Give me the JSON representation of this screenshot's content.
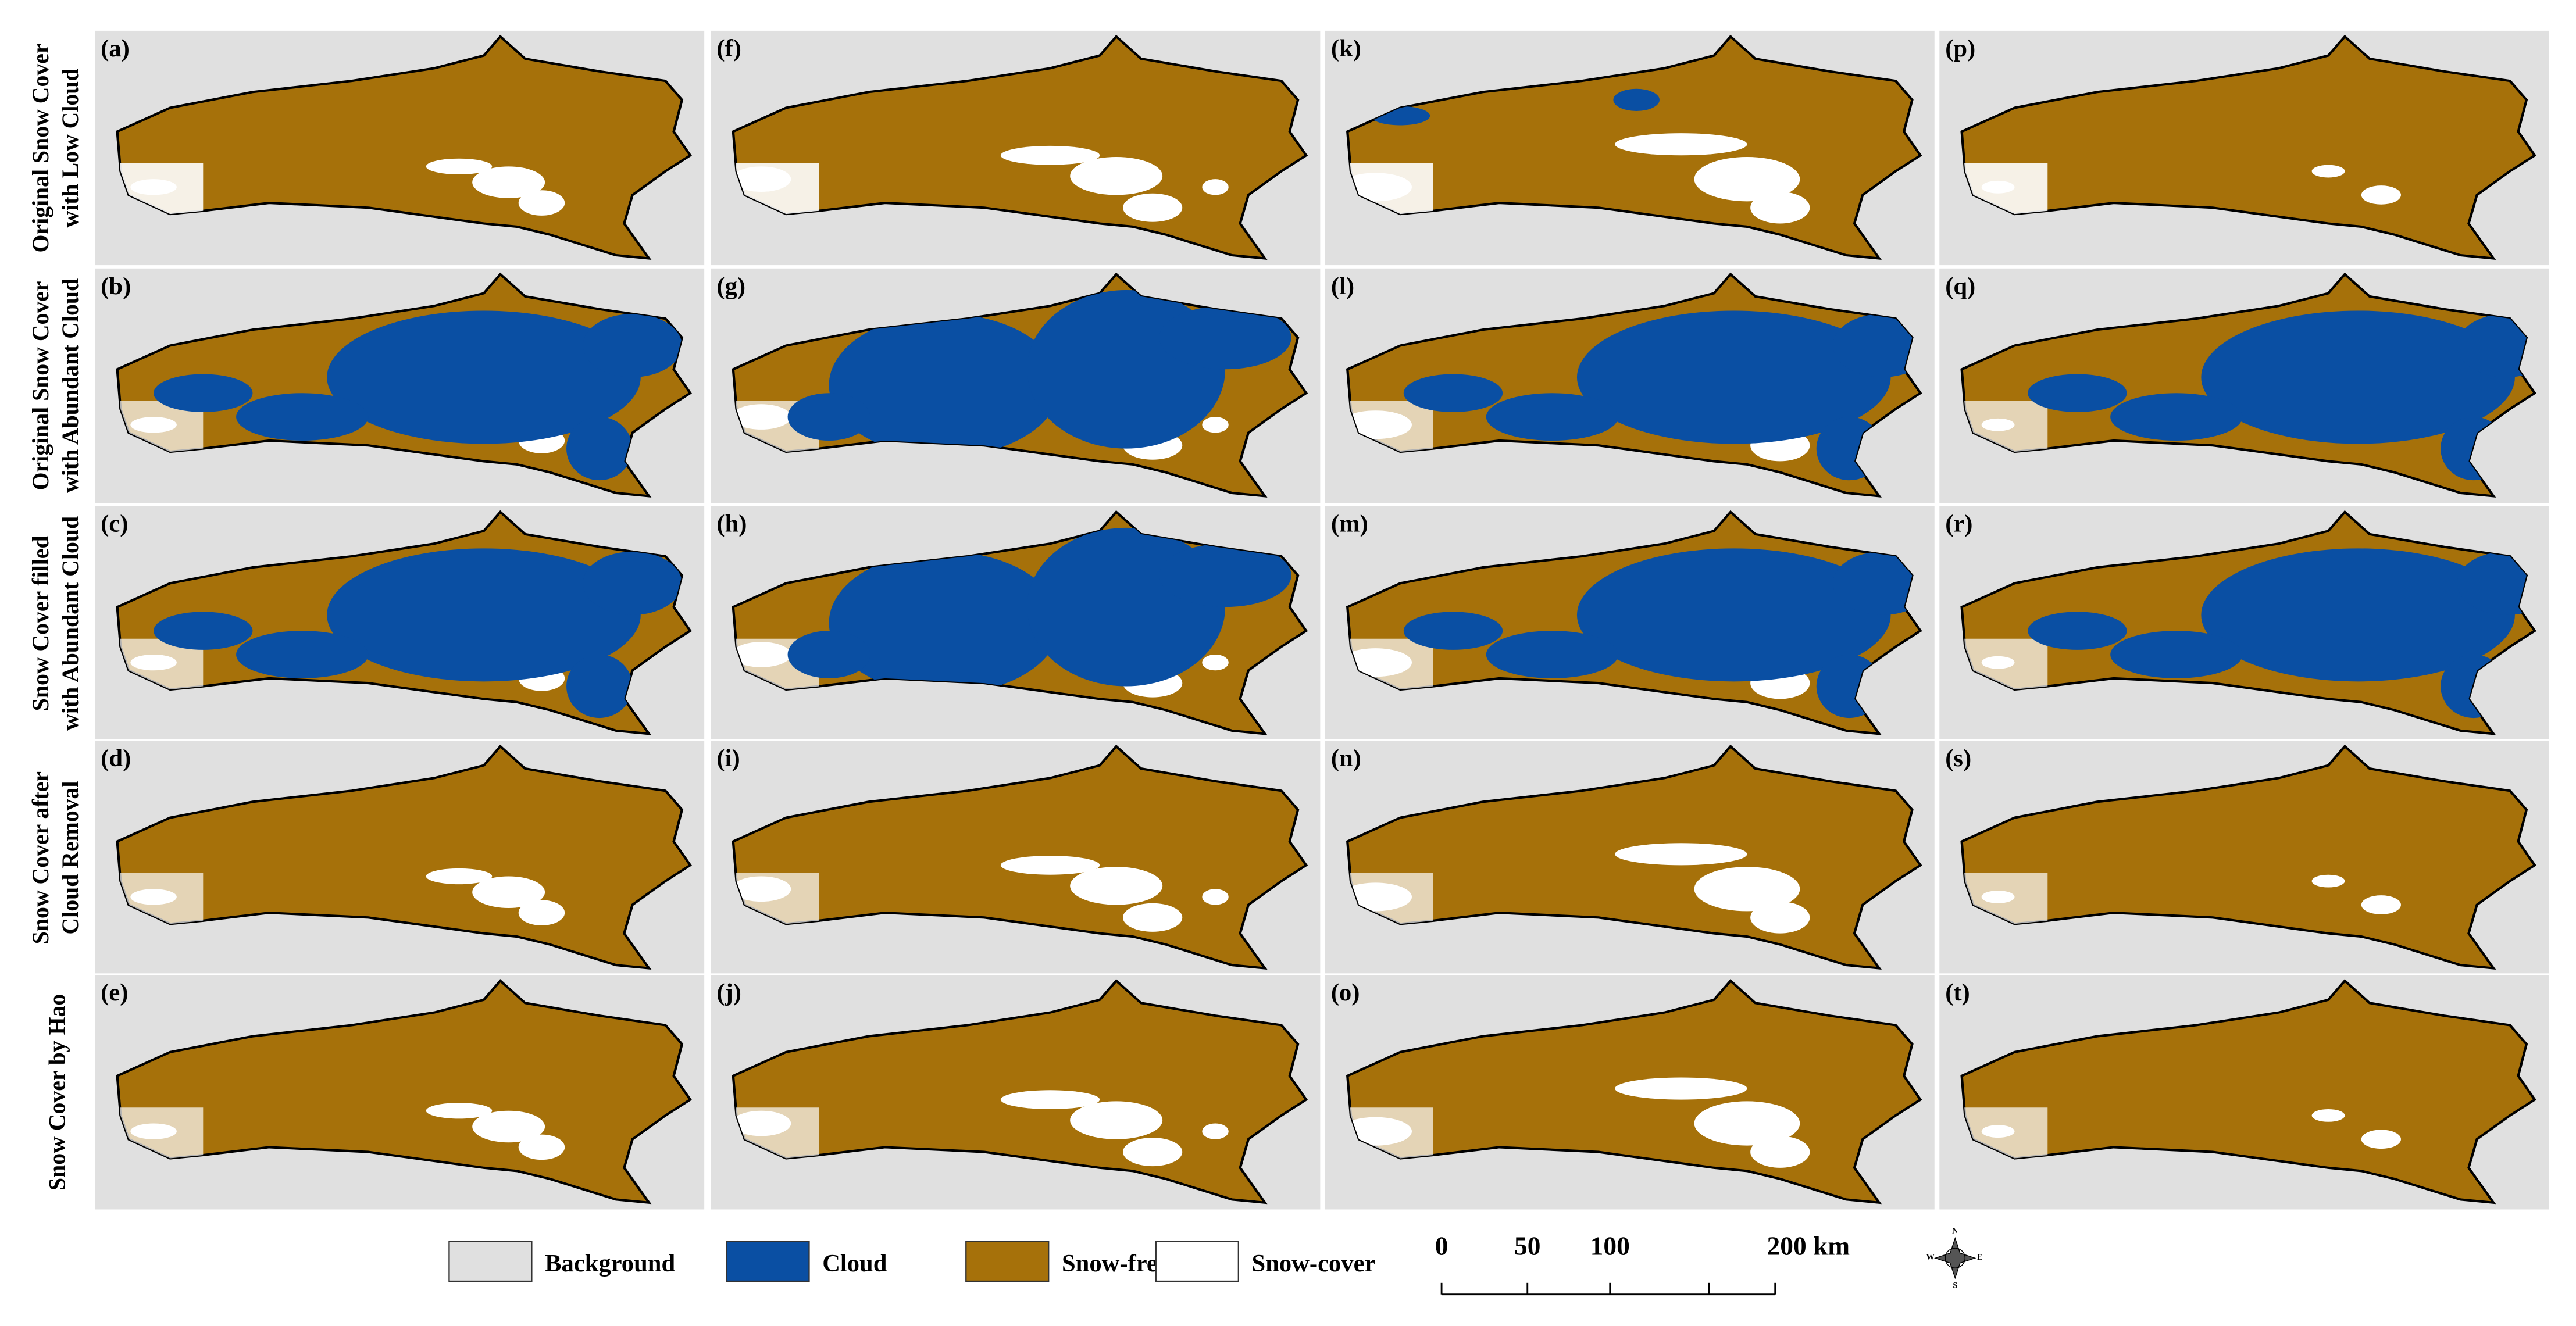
{
  "rows": [
    {
      "label": [
        "Original Snow Cover",
        "with Low Cloud"
      ],
      "panels": [
        "(a)",
        "(f)",
        "(k)",
        "(p)"
      ]
    },
    {
      "label": [
        "Original Snow Cover",
        "with Abundant Cloud"
      ],
      "panels": [
        "(b)",
        "(g)",
        "(l)",
        "(q)"
      ]
    },
    {
      "label": [
        "Snow Cover filled",
        "with Abundant Cloud"
      ],
      "panels": [
        "(c)",
        "(h)",
        "(m)",
        "(r)"
      ]
    },
    {
      "label": [
        "Snow Cover after",
        "Cloud Removal"
      ],
      "panels": [
        "(d)",
        "(i)",
        "(n)",
        "(s)"
      ]
    },
    {
      "label": [
        "Snow Cover by Hao"
      ],
      "panels": [
        "(e)",
        "(j)",
        "(o)",
        "(t)"
      ]
    }
  ],
  "legend": [
    {
      "name": "Background",
      "color": "#e0e0e0"
    },
    {
      "name": "Cloud",
      "color": "#0a4fa3"
    },
    {
      "name": "Snow-free",
      "color": "#a6710a"
    },
    {
      "name": "Snow-cover",
      "color": "#ffffff"
    }
  ],
  "scale_bar": {
    "labels": [
      "0",
      "50",
      "100",
      "200 km"
    ]
  },
  "compass": {
    "labels": [
      "N",
      "E",
      "S",
      "W"
    ]
  }
}
